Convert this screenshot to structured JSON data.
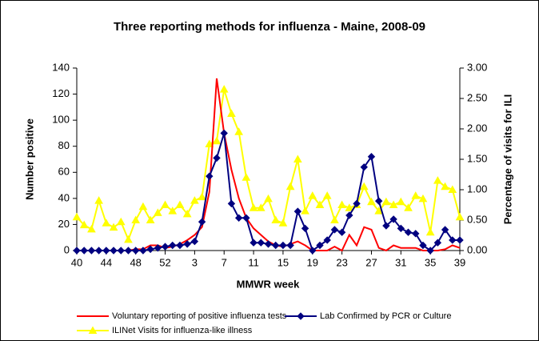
{
  "chart_data": {
    "type": "line",
    "title": "Three reporting methods for influenza - Maine, 2008-09",
    "x_label": "MMWR week",
    "y_label": "Number positive",
    "y2_label": "Percentage of visits for ILI",
    "categories": [
      "40",
      null,
      null,
      null,
      "44",
      null,
      null,
      null,
      "48",
      null,
      null,
      null,
      "52",
      null,
      null,
      null,
      "3",
      null,
      null,
      null,
      "7",
      null,
      null,
      null,
      "11",
      null,
      null,
      null,
      "15",
      null,
      null,
      null,
      "19",
      null,
      null,
      null,
      "23",
      null,
      null,
      null,
      "27",
      null,
      null,
      null,
      "31",
      null,
      null,
      null,
      "35",
      null,
      null,
      null,
      "39"
    ],
    "ylim": [
      0,
      140
    ],
    "yticks": [
      0,
      20,
      40,
      60,
      80,
      100,
      120,
      140
    ],
    "y2lim": [
      0,
      3
    ],
    "y2ticks": [
      {
        "value": 0,
        "label": "0.00"
      },
      {
        "value": 0.5,
        "label": "0.50"
      },
      {
        "value": 1,
        "label": "1.00"
      },
      {
        "value": 1.5,
        "label": "1.50"
      },
      {
        "value": 2,
        "label": "2.00"
      },
      {
        "value": 2.5,
        "label": "2.50"
      },
      {
        "value": 3,
        "label": "3.00"
      }
    ],
    "series": [
      {
        "name": "Voluntary reporting of positive influenza tests",
        "color": "#ff0000",
        "marker": "none",
        "values": [
          0,
          0,
          0,
          0,
          0,
          0,
          0,
          0,
          1,
          1,
          4,
          4,
          2,
          3,
          5,
          8,
          12,
          18,
          45,
          132,
          90,
          62,
          40,
          25,
          17,
          12,
          7,
          4,
          3,
          5,
          7,
          4,
          0,
          0,
          0,
          3,
          0,
          12,
          4,
          18,
          16,
          2,
          0,
          4,
          2,
          2,
          2,
          0,
          0,
          0,
          1,
          4,
          2
        ]
      },
      {
        "name": "Lab Confirmed by PCR or Culture",
        "color": "#000080",
        "marker": "diamond",
        "values": [
          0,
          0,
          0,
          0,
          0,
          0,
          0,
          0,
          0,
          0,
          1,
          2,
          3,
          4,
          4,
          5,
          7,
          22,
          57,
          71,
          90,
          36,
          25,
          25,
          6,
          6,
          5,
          4,
          4,
          4,
          30,
          17,
          0,
          4,
          8,
          16,
          14,
          27,
          36,
          64,
          72,
          38,
          19,
          24,
          17,
          14,
          13,
          4,
          0,
          6,
          16,
          8,
          8
        ]
      },
      {
        "name": "ILINet Visits for influenza-like illness",
        "color": "#ffff00",
        "marker": "triangle",
        "axis": "y2",
        "values": [
          0.55,
          0.42,
          0.35,
          0.82,
          0.45,
          0.38,
          0.47,
          0.18,
          0.5,
          0.72,
          0.5,
          0.62,
          0.75,
          0.65,
          0.75,
          0.6,
          0.82,
          0.88,
          1.75,
          1.8,
          2.65,
          2.25,
          1.95,
          1.2,
          0.7,
          0.7,
          0.85,
          0.5,
          0.45,
          1.05,
          1.5,
          0.65,
          0.9,
          0.75,
          0.9,
          0.5,
          0.75,
          0.7,
          0.75,
          1.05,
          0.8,
          0.65,
          0.8,
          0.75,
          0.8,
          0.7,
          0.9,
          0.85,
          0.3,
          1.15,
          1.05,
          1.0,
          0.55
        ]
      }
    ]
  }
}
